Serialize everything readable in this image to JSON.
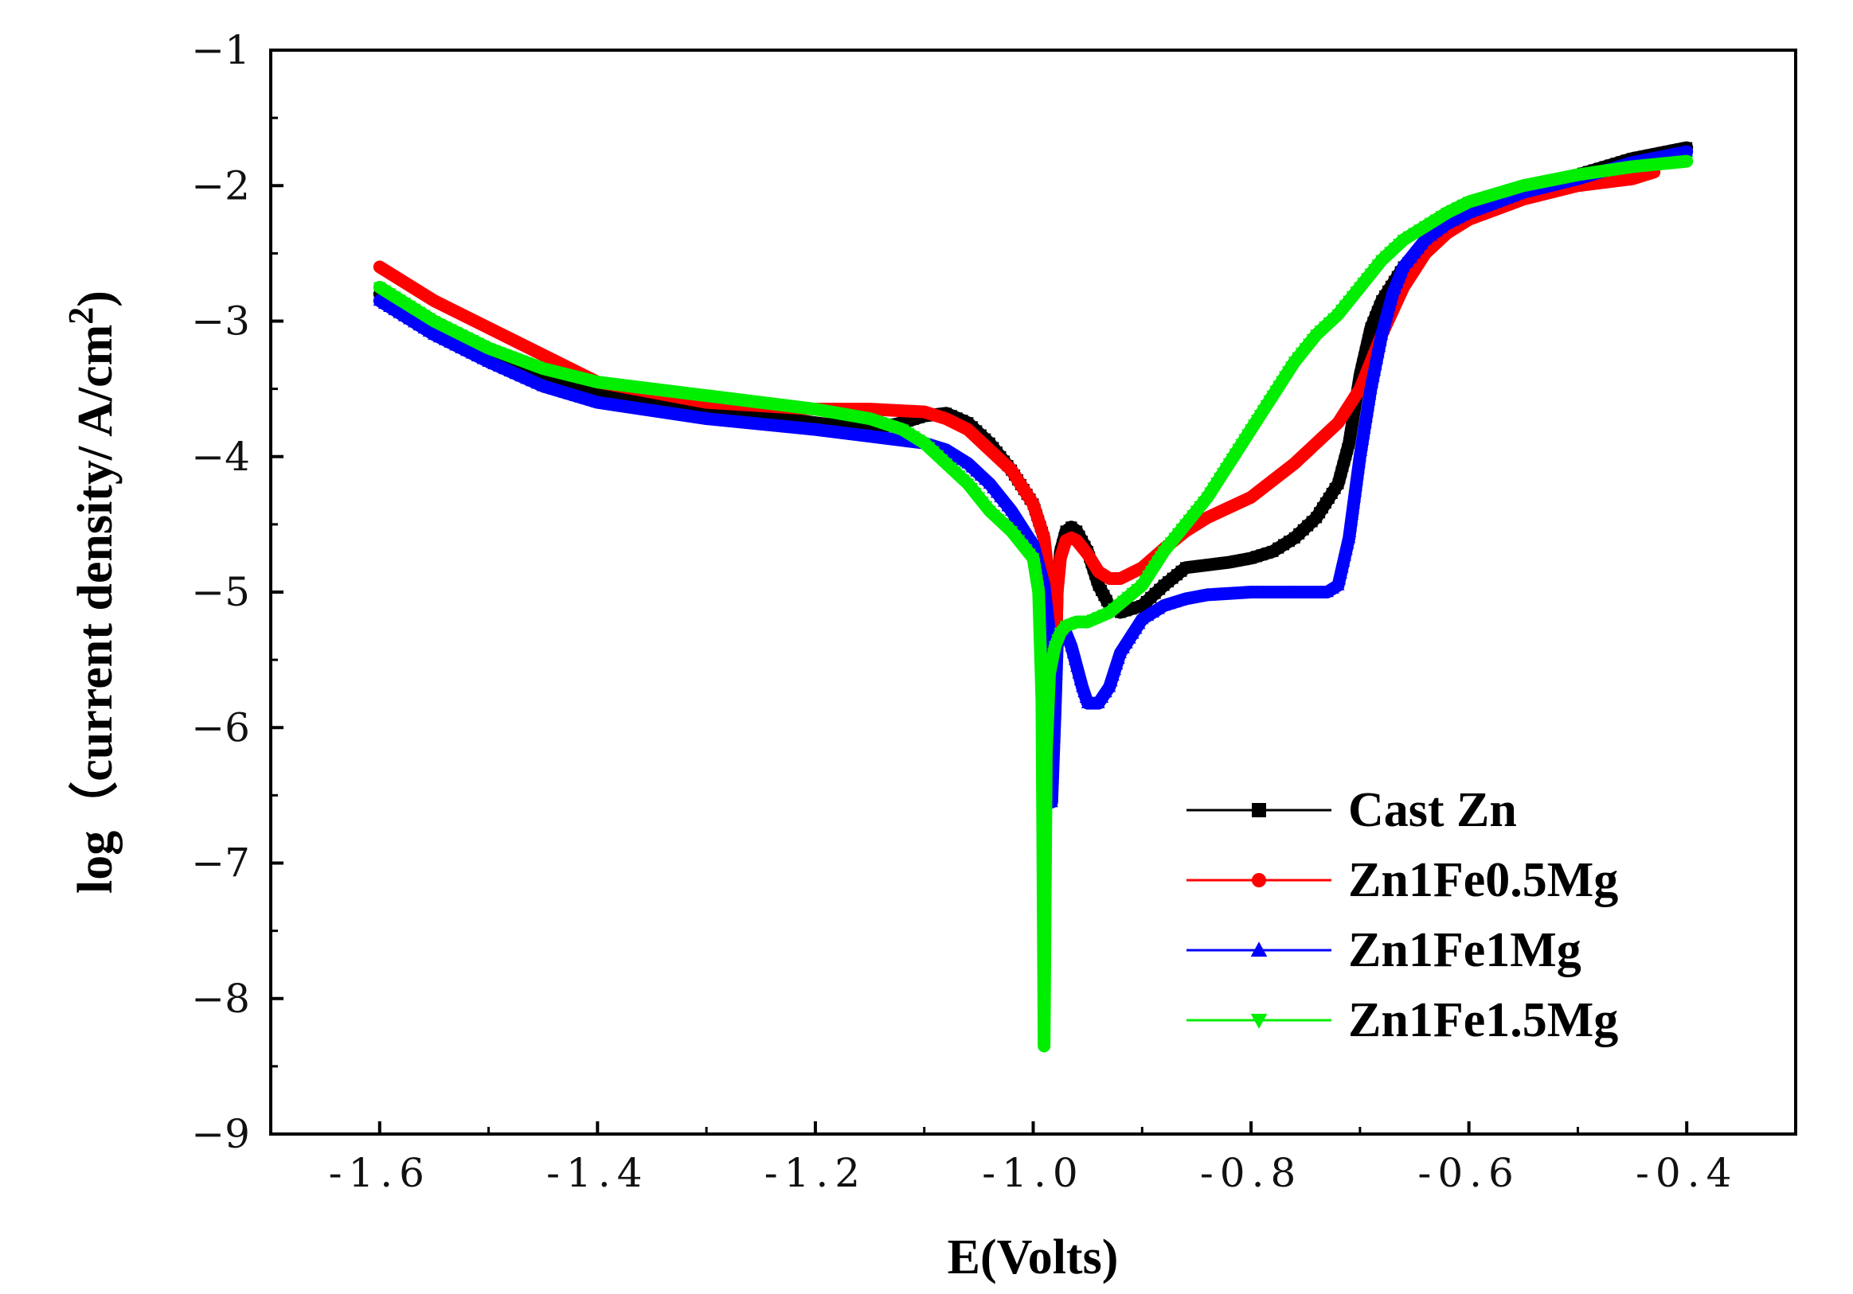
{
  "chart_data": {
    "type": "line",
    "title": "",
    "xlabel": "E(Volts)",
    "ylabel_main": "log（current density/ A/cm",
    "ylabel_sup": "2",
    "ylabel_close": ")",
    "xlim": [
      -1.7,
      -0.3
    ],
    "ylim": [
      -9,
      -1
    ],
    "x_ticks": [
      -1.6,
      -1.4,
      -1.2,
      -1.0,
      -0.8,
      -0.6,
      -0.4
    ],
    "x_tick_labels": [
      "-1.6",
      "-1.4",
      "-1.2",
      "-1.0",
      "-0.8",
      "-0.6",
      "-0.4"
    ],
    "y_ticks": [
      -9,
      -8,
      -7,
      -6,
      -5,
      -4,
      -3,
      -2,
      -1
    ],
    "y_tick_labels": [
      "−9",
      "−8",
      "−7",
      "−6",
      "−5",
      "−4",
      "−3",
      "−2",
      "−1"
    ],
    "grid": false,
    "legend_position": "bottom-right",
    "series": [
      {
        "name": "Cast Zn",
        "color": "#000000",
        "marker": "square",
        "x": [
          -1.6,
          -1.55,
          -1.5,
          -1.45,
          -1.4,
          -1.3,
          -1.2,
          -1.15,
          -1.12,
          -1.1,
          -1.08,
          -1.06,
          -1.04,
          -1.02,
          -1.0,
          -0.99,
          -0.985,
          -0.982,
          -0.98,
          -0.978,
          -0.975,
          -0.97,
          -0.965,
          -0.96,
          -0.95,
          -0.94,
          -0.93,
          -0.92,
          -0.9,
          -0.88,
          -0.86,
          -0.84,
          -0.82,
          -0.8,
          -0.78,
          -0.76,
          -0.74,
          -0.72,
          -0.71,
          -0.7,
          -0.69,
          -0.68,
          -0.66,
          -0.64,
          -0.62,
          -0.6,
          -0.55,
          -0.5,
          -0.45,
          -0.4
        ],
        "y": [
          -2.8,
          -3.05,
          -3.25,
          -3.4,
          -3.52,
          -3.65,
          -3.75,
          -3.8,
          -3.75,
          -3.7,
          -3.68,
          -3.75,
          -3.9,
          -4.1,
          -4.35,
          -4.6,
          -5.2,
          -6.25,
          -5.7,
          -5.0,
          -4.7,
          -4.55,
          -4.52,
          -4.55,
          -4.7,
          -4.95,
          -5.1,
          -5.15,
          -5.1,
          -4.95,
          -4.82,
          -4.8,
          -4.78,
          -4.75,
          -4.7,
          -4.6,
          -4.45,
          -4.2,
          -3.9,
          -3.4,
          -3.05,
          -2.85,
          -2.6,
          -2.45,
          -2.3,
          -2.2,
          -2.05,
          -1.92,
          -1.8,
          -1.72
        ]
      },
      {
        "name": "Zn1Fe0.5Mg",
        "color": "#ff0000",
        "marker": "circle",
        "x": [
          -1.6,
          -1.59,
          -1.55,
          -1.5,
          -1.45,
          -1.4,
          -1.3,
          -1.2,
          -1.15,
          -1.1,
          -1.08,
          -1.06,
          -1.04,
          -1.02,
          -1.0,
          -0.99,
          -0.985,
          -0.982,
          -0.98,
          -0.978,
          -0.975,
          -0.97,
          -0.965,
          -0.96,
          -0.95,
          -0.94,
          -0.93,
          -0.92,
          -0.9,
          -0.88,
          -0.86,
          -0.84,
          -0.8,
          -0.76,
          -0.72,
          -0.7,
          -0.68,
          -0.66,
          -0.64,
          -0.62,
          -0.6,
          -0.55,
          -0.5,
          -0.45,
          -0.43
        ],
        "y": [
          -2.6,
          -2.65,
          -2.85,
          -3.05,
          -3.25,
          -3.45,
          -3.6,
          -3.65,
          -3.65,
          -3.67,
          -3.72,
          -3.8,
          -3.95,
          -4.1,
          -4.35,
          -4.6,
          -4.95,
          -6.2,
          -5.7,
          -5.0,
          -4.75,
          -4.62,
          -4.6,
          -4.62,
          -4.72,
          -4.85,
          -4.9,
          -4.9,
          -4.82,
          -4.68,
          -4.55,
          -4.45,
          -4.3,
          -4.05,
          -3.75,
          -3.5,
          -3.1,
          -2.75,
          -2.5,
          -2.35,
          -2.25,
          -2.1,
          -2.0,
          -1.95,
          -1.9
        ]
      },
      {
        "name": "Zn1Fe1Mg",
        "color": "#0000ff",
        "marker": "triangle-up",
        "x": [
          -1.6,
          -1.55,
          -1.5,
          -1.45,
          -1.4,
          -1.3,
          -1.2,
          -1.15,
          -1.1,
          -1.08,
          -1.06,
          -1.04,
          -1.02,
          -1.0,
          -0.99,
          -0.985,
          -0.983,
          -0.98,
          -0.978,
          -0.975,
          -0.97,
          -0.965,
          -0.96,
          -0.955,
          -0.95,
          -0.94,
          -0.93,
          -0.92,
          -0.9,
          -0.88,
          -0.86,
          -0.84,
          -0.8,
          -0.76,
          -0.73,
          -0.72,
          -0.71,
          -0.7,
          -0.69,
          -0.68,
          -0.67,
          -0.66,
          -0.64,
          -0.62,
          -0.6,
          -0.55,
          -0.5,
          -0.45,
          -0.4
        ],
        "y": [
          -2.85,
          -3.1,
          -3.3,
          -3.48,
          -3.6,
          -3.72,
          -3.8,
          -3.85,
          -3.9,
          -3.95,
          -4.05,
          -4.2,
          -4.4,
          -4.65,
          -4.95,
          -5.3,
          -6.55,
          -5.9,
          -5.4,
          -5.3,
          -5.3,
          -5.4,
          -5.55,
          -5.7,
          -5.82,
          -5.82,
          -5.7,
          -5.45,
          -5.2,
          -5.1,
          -5.05,
          -5.02,
          -5.0,
          -5.0,
          -5.0,
          -4.95,
          -4.6,
          -4.0,
          -3.5,
          -3.1,
          -2.8,
          -2.6,
          -2.4,
          -2.28,
          -2.2,
          -2.05,
          -1.95,
          -1.83,
          -1.75
        ]
      },
      {
        "name": "Zn1Fe1.5Mg",
        "color": "#00ee00",
        "marker": "triangle-down",
        "x": [
          -1.6,
          -1.55,
          -1.5,
          -1.45,
          -1.4,
          -1.3,
          -1.2,
          -1.15,
          -1.12,
          -1.1,
          -1.08,
          -1.06,
          -1.04,
          -1.02,
          -1.0,
          -0.995,
          -0.992,
          -0.99,
          -0.988,
          -0.985,
          -0.98,
          -0.975,
          -0.97,
          -0.96,
          -0.95,
          -0.93,
          -0.9,
          -0.88,
          -0.86,
          -0.84,
          -0.82,
          -0.8,
          -0.78,
          -0.76,
          -0.74,
          -0.72,
          -0.7,
          -0.68,
          -0.66,
          -0.64,
          -0.62,
          -0.6,
          -0.55,
          -0.5,
          -0.45,
          -0.4
        ],
        "y": [
          -2.75,
          -3.0,
          -3.2,
          -3.35,
          -3.45,
          -3.55,
          -3.65,
          -3.72,
          -3.8,
          -3.9,
          -4.05,
          -4.2,
          -4.4,
          -4.55,
          -4.75,
          -5.0,
          -5.8,
          -8.35,
          -6.2,
          -5.6,
          -5.4,
          -5.3,
          -5.25,
          -5.22,
          -5.22,
          -5.15,
          -4.95,
          -4.7,
          -4.5,
          -4.3,
          -4.05,
          -3.8,
          -3.55,
          -3.3,
          -3.1,
          -2.95,
          -2.75,
          -2.55,
          -2.4,
          -2.3,
          -2.2,
          -2.12,
          -2.0,
          -1.92,
          -1.86,
          -1.82
        ]
      }
    ]
  }
}
